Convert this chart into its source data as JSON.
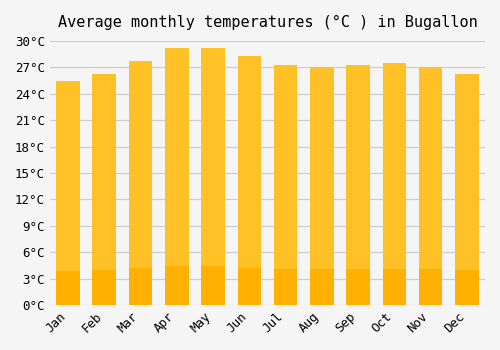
{
  "months": [
    "Jan",
    "Feb",
    "Mar",
    "Apr",
    "May",
    "Jun",
    "Jul",
    "Aug",
    "Sep",
    "Oct",
    "Nov",
    "Dec"
  ],
  "temperatures": [
    25.5,
    26.2,
    27.7,
    29.2,
    29.2,
    28.3,
    27.3,
    27.0,
    27.3,
    27.5,
    27.0,
    26.2
  ],
  "bar_color_top": "#FFC125",
  "bar_color_bottom": "#FFB000",
  "title": "Average monthly temperatures (°C ) in Bugallon",
  "ylabel": "",
  "xlabel": "",
  "ylim": [
    0,
    30
  ],
  "ytick_step": 3,
  "background_color": "#f5f5f5",
  "grid_color": "#cccccc",
  "title_fontsize": 11,
  "tick_fontsize": 9,
  "font_family": "monospace"
}
